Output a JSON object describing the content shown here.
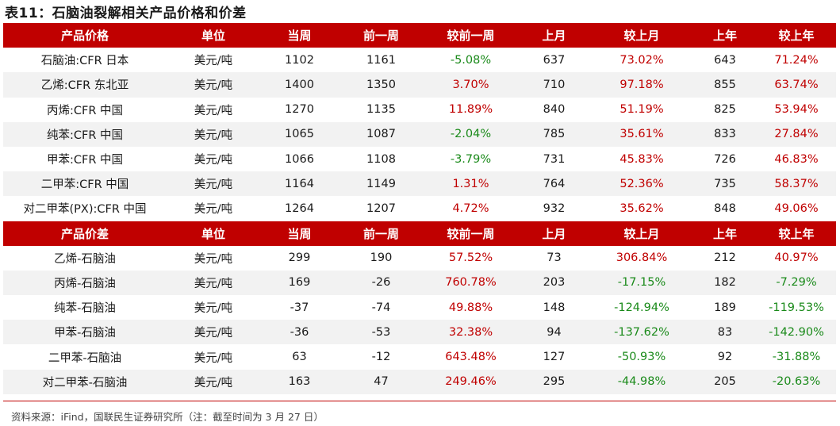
{
  "title": "表11：石脑油裂解相关产品价格和价差",
  "columns": [
    "单位",
    "当周",
    "前一周",
    "较前一周",
    "上月",
    "较上月",
    "上年",
    "较上年"
  ],
  "section1": {
    "header": "产品价格",
    "rows": [
      {
        "name": "石脑油:CFR 日本",
        "unit": "美元/吨",
        "week": "1102",
        "prev_week": "1161",
        "wow": "-5.08%",
        "month": "637",
        "mom": "73.02%",
        "year": "643",
        "yoy": "71.24%"
      },
      {
        "name": "乙烯:CFR 东北亚",
        "unit": "美元/吨",
        "week": "1400",
        "prev_week": "1350",
        "wow": "3.70%",
        "month": "710",
        "mom": "97.18%",
        "year": "855",
        "yoy": "63.74%"
      },
      {
        "name": "丙烯:CFR 中国",
        "unit": "美元/吨",
        "week": "1270",
        "prev_week": "1135",
        "wow": "11.89%",
        "month": "840",
        "mom": "51.19%",
        "year": "825",
        "yoy": "53.94%"
      },
      {
        "name": "纯苯:CFR 中国",
        "unit": "美元/吨",
        "week": "1065",
        "prev_week": "1087",
        "wow": "-2.04%",
        "month": "785",
        "mom": "35.61%",
        "year": "833",
        "yoy": "27.84%"
      },
      {
        "name": "甲苯:CFR 中国",
        "unit": "美元/吨",
        "week": "1066",
        "prev_week": "1108",
        "wow": "-3.79%",
        "month": "731",
        "mom": "45.83%",
        "year": "726",
        "yoy": "46.83%"
      },
      {
        "name": "二甲苯:CFR 中国",
        "unit": "美元/吨",
        "week": "1164",
        "prev_week": "1149",
        "wow": "1.31%",
        "month": "764",
        "mom": "52.36%",
        "year": "735",
        "yoy": "58.37%"
      },
      {
        "name": "对二甲苯(PX):CFR 中国",
        "unit": "美元/吨",
        "week": "1264",
        "prev_week": "1207",
        "wow": "4.72%",
        "month": "932",
        "mom": "35.62%",
        "year": "848",
        "yoy": "49.06%"
      }
    ]
  },
  "section2": {
    "header": "产品价差",
    "rows": [
      {
        "name": "乙烯-石脑油",
        "unit": "美元/吨",
        "week": "299",
        "prev_week": "190",
        "wow": "57.52%",
        "month": "73",
        "mom": "306.84%",
        "year": "212",
        "yoy": "40.97%"
      },
      {
        "name": "丙烯-石脑油",
        "unit": "美元/吨",
        "week": "169",
        "prev_week": "-26",
        "wow": "760.78%",
        "month": "203",
        "mom": "-17.15%",
        "year": "182",
        "yoy": "-7.29%"
      },
      {
        "name": "纯苯-石脑油",
        "unit": "美元/吨",
        "week": "-37",
        "prev_week": "-74",
        "wow": "49.88%",
        "month": "148",
        "mom": "-124.94%",
        "year": "189",
        "yoy": "-119.53%"
      },
      {
        "name": "甲苯-石脑油",
        "unit": "美元/吨",
        "week": "-36",
        "prev_week": "-53",
        "wow": "32.38%",
        "month": "94",
        "mom": "-137.62%",
        "year": "83",
        "yoy": "-142.90%"
      },
      {
        "name": "二甲苯-石脑油",
        "unit": "美元/吨",
        "week": "63",
        "prev_week": "-12",
        "wow": "643.48%",
        "month": "127",
        "mom": "-50.93%",
        "year": "92",
        "yoy": "-31.88%"
      },
      {
        "name": "对二甲苯-石脑油",
        "unit": "美元/吨",
        "week": "163",
        "prev_week": "47",
        "wow": "249.46%",
        "month": "295",
        "mom": "-44.98%",
        "year": "205",
        "yoy": "-20.63%"
      }
    ]
  },
  "source": "资料来源：iFind，国联民生证券研究所（注：截至时间为 3 月 27 日）",
  "colors": {
    "header_bg": "#c00000",
    "positive": "#c00000",
    "negative": "#1a8a1a",
    "stripe": "#f2f2f2"
  }
}
